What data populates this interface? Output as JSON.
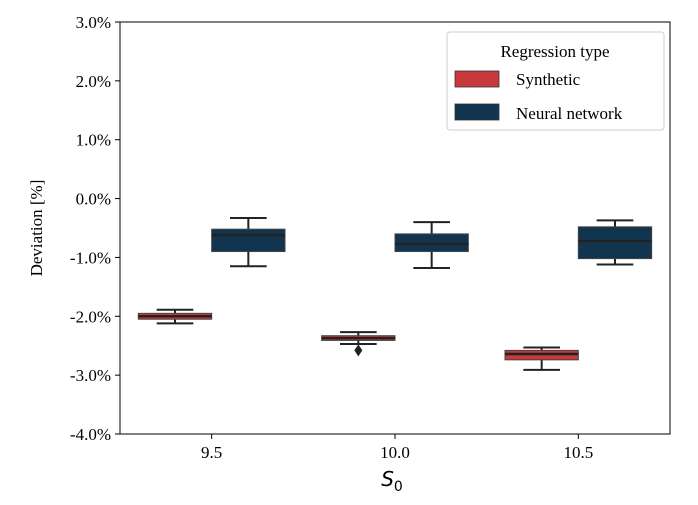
{
  "chart_data": {
    "type": "box",
    "title": "",
    "xlabel": "S",
    "xlabel_subscript": "0",
    "ylabel": "Deviation [%]",
    "ylim": [
      -4.0,
      3.0
    ],
    "yticks": [
      "-4.0%",
      "-3.0%",
      "-2.0%",
      "-1.0%",
      "0.0%",
      "1.0%",
      "2.0%",
      "3.0%"
    ],
    "ytick_values": [
      -4,
      -3,
      -2,
      -1,
      0,
      1,
      2,
      3
    ],
    "categories": [
      "9.5",
      "10.0",
      "10.5"
    ],
    "grid": false,
    "legend": {
      "title": "Regression type",
      "placement": "top-right",
      "entries": [
        "Synthetic",
        "Neural network"
      ]
    },
    "series": [
      {
        "name": "Synthetic",
        "color": "#c8393b",
        "boxes": [
          {
            "whisker_low": -2.12,
            "q1": -2.05,
            "median": -2.0,
            "q3": -1.95,
            "whisker_high": -1.89,
            "outliers": []
          },
          {
            "whisker_low": -2.47,
            "q1": -2.41,
            "median": -2.37,
            "q3": -2.33,
            "whisker_high": -2.27,
            "outliers": [
              -2.58
            ]
          },
          {
            "whisker_low": -2.91,
            "q1": -2.74,
            "median": -2.64,
            "q3": -2.58,
            "whisker_high": -2.53,
            "outliers": []
          }
        ]
      },
      {
        "name": "Neural network",
        "color": "#12354f",
        "boxes": [
          {
            "whisker_low": -1.15,
            "q1": -0.9,
            "median": -0.62,
            "q3": -0.52,
            "whisker_high": -0.33,
            "outliers": []
          },
          {
            "whisker_low": -1.18,
            "q1": -0.9,
            "median": -0.77,
            "q3": -0.6,
            "whisker_high": -0.4,
            "outliers": []
          },
          {
            "whisker_low": -1.12,
            "q1": -1.02,
            "median": -0.72,
            "q3": -0.48,
            "whisker_high": -0.37,
            "outliers": []
          }
        ]
      }
    ]
  }
}
